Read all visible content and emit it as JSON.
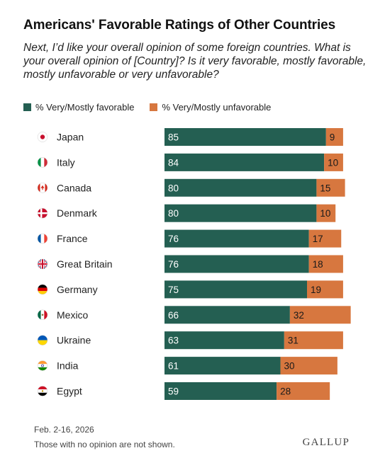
{
  "title": "Americans' Favorable Ratings of Other Countries",
  "subtitle": "Next, I’d like your overall opinion of some foreign countries. What is your overall opinion of [Country]? Is it very favorable, mostly favorable, mostly unfavorable or very unfavorable?",
  "colors": {
    "favorable": "#245f52",
    "unfavorable": "#d7773f"
  },
  "chart_data": {
    "type": "bar",
    "orientation": "horizontal",
    "stacked": true,
    "categories": [
      "Japan",
      "Italy",
      "Canada",
      "Denmark",
      "France",
      "Great Britain",
      "Germany",
      "Mexico",
      "Ukraine",
      "India",
      "Egypt"
    ],
    "flags": [
      "japan-flag-icon",
      "italy-flag-icon",
      "canada-flag-icon",
      "denmark-flag-icon",
      "france-flag-icon",
      "great-britain-flag-icon",
      "germany-flag-icon",
      "mexico-flag-icon",
      "ukraine-flag-icon",
      "india-flag-icon",
      "egypt-flag-icon"
    ],
    "series": [
      {
        "name": "% Very/Mostly favorable",
        "values": [
          85,
          84,
          80,
          80,
          76,
          76,
          75,
          66,
          63,
          61,
          59
        ]
      },
      {
        "name": "% Very/Mostly unfavorable",
        "values": [
          9,
          10,
          15,
          10,
          17,
          18,
          19,
          32,
          31,
          30,
          28
        ]
      }
    ],
    "xlim": [
      0,
      100
    ],
    "grid": false,
    "legend": "top-left"
  },
  "footer": {
    "date": "Feb. 2-16, 2026",
    "note": "Those with no opinion are not shown.",
    "logo": "GALLUP"
  }
}
